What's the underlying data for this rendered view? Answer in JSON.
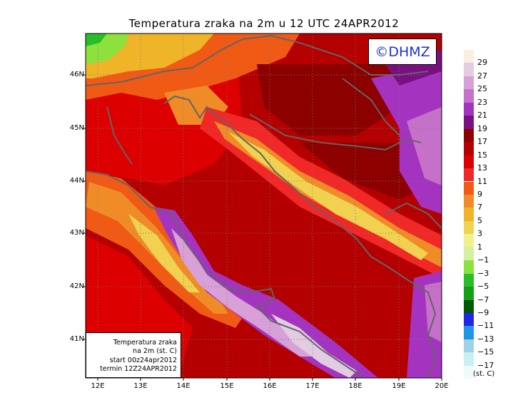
{
  "title": "Temperatura zraka na 2m u 12 UTC 24APR2012",
  "logo_text": "©DHMZ",
  "info_box": {
    "line1": "Temperatura zraka",
    "line2": "na 2m (st. C)",
    "line3": "start 00z24apr2012",
    "line4": "termin 12Z24APR2012"
  },
  "lat_labels": [
    "46N",
    "45N",
    "44N",
    "43N",
    "42N",
    "41N"
  ],
  "lon_labels": [
    "12E",
    "13E",
    "14E",
    "15E",
    "16E",
    "17E",
    "18E",
    "19E",
    "20E"
  ],
  "legend": {
    "units": "(st. C)",
    "labels": [
      "29",
      "27",
      "25",
      "23",
      "21",
      "19",
      "17",
      "15",
      "13",
      "11",
      "9",
      "7",
      "5",
      "3",
      "1",
      "−1",
      "−3",
      "−5",
      "−7",
      "−9",
      "−11",
      "−13",
      "−15",
      "−17"
    ],
    "colors": [
      "#fbeee0",
      "#e1cce1",
      "#d7a0d7",
      "#c571c9",
      "#a434c0",
      "#7a0f82",
      "#8c0000",
      "#b40000",
      "#dc0000",
      "#f02828",
      "#f05a14",
      "#f08c28",
      "#f0b428",
      "#f0d250",
      "#f0f08c",
      "#d2f0a0",
      "#8ce13c",
      "#28be28",
      "#14a014",
      "#005a00",
      "#1e28e6",
      "#1e96e6",
      "#a0d2e6",
      "#c8f0f0",
      "#f0fafa"
    ]
  }
}
